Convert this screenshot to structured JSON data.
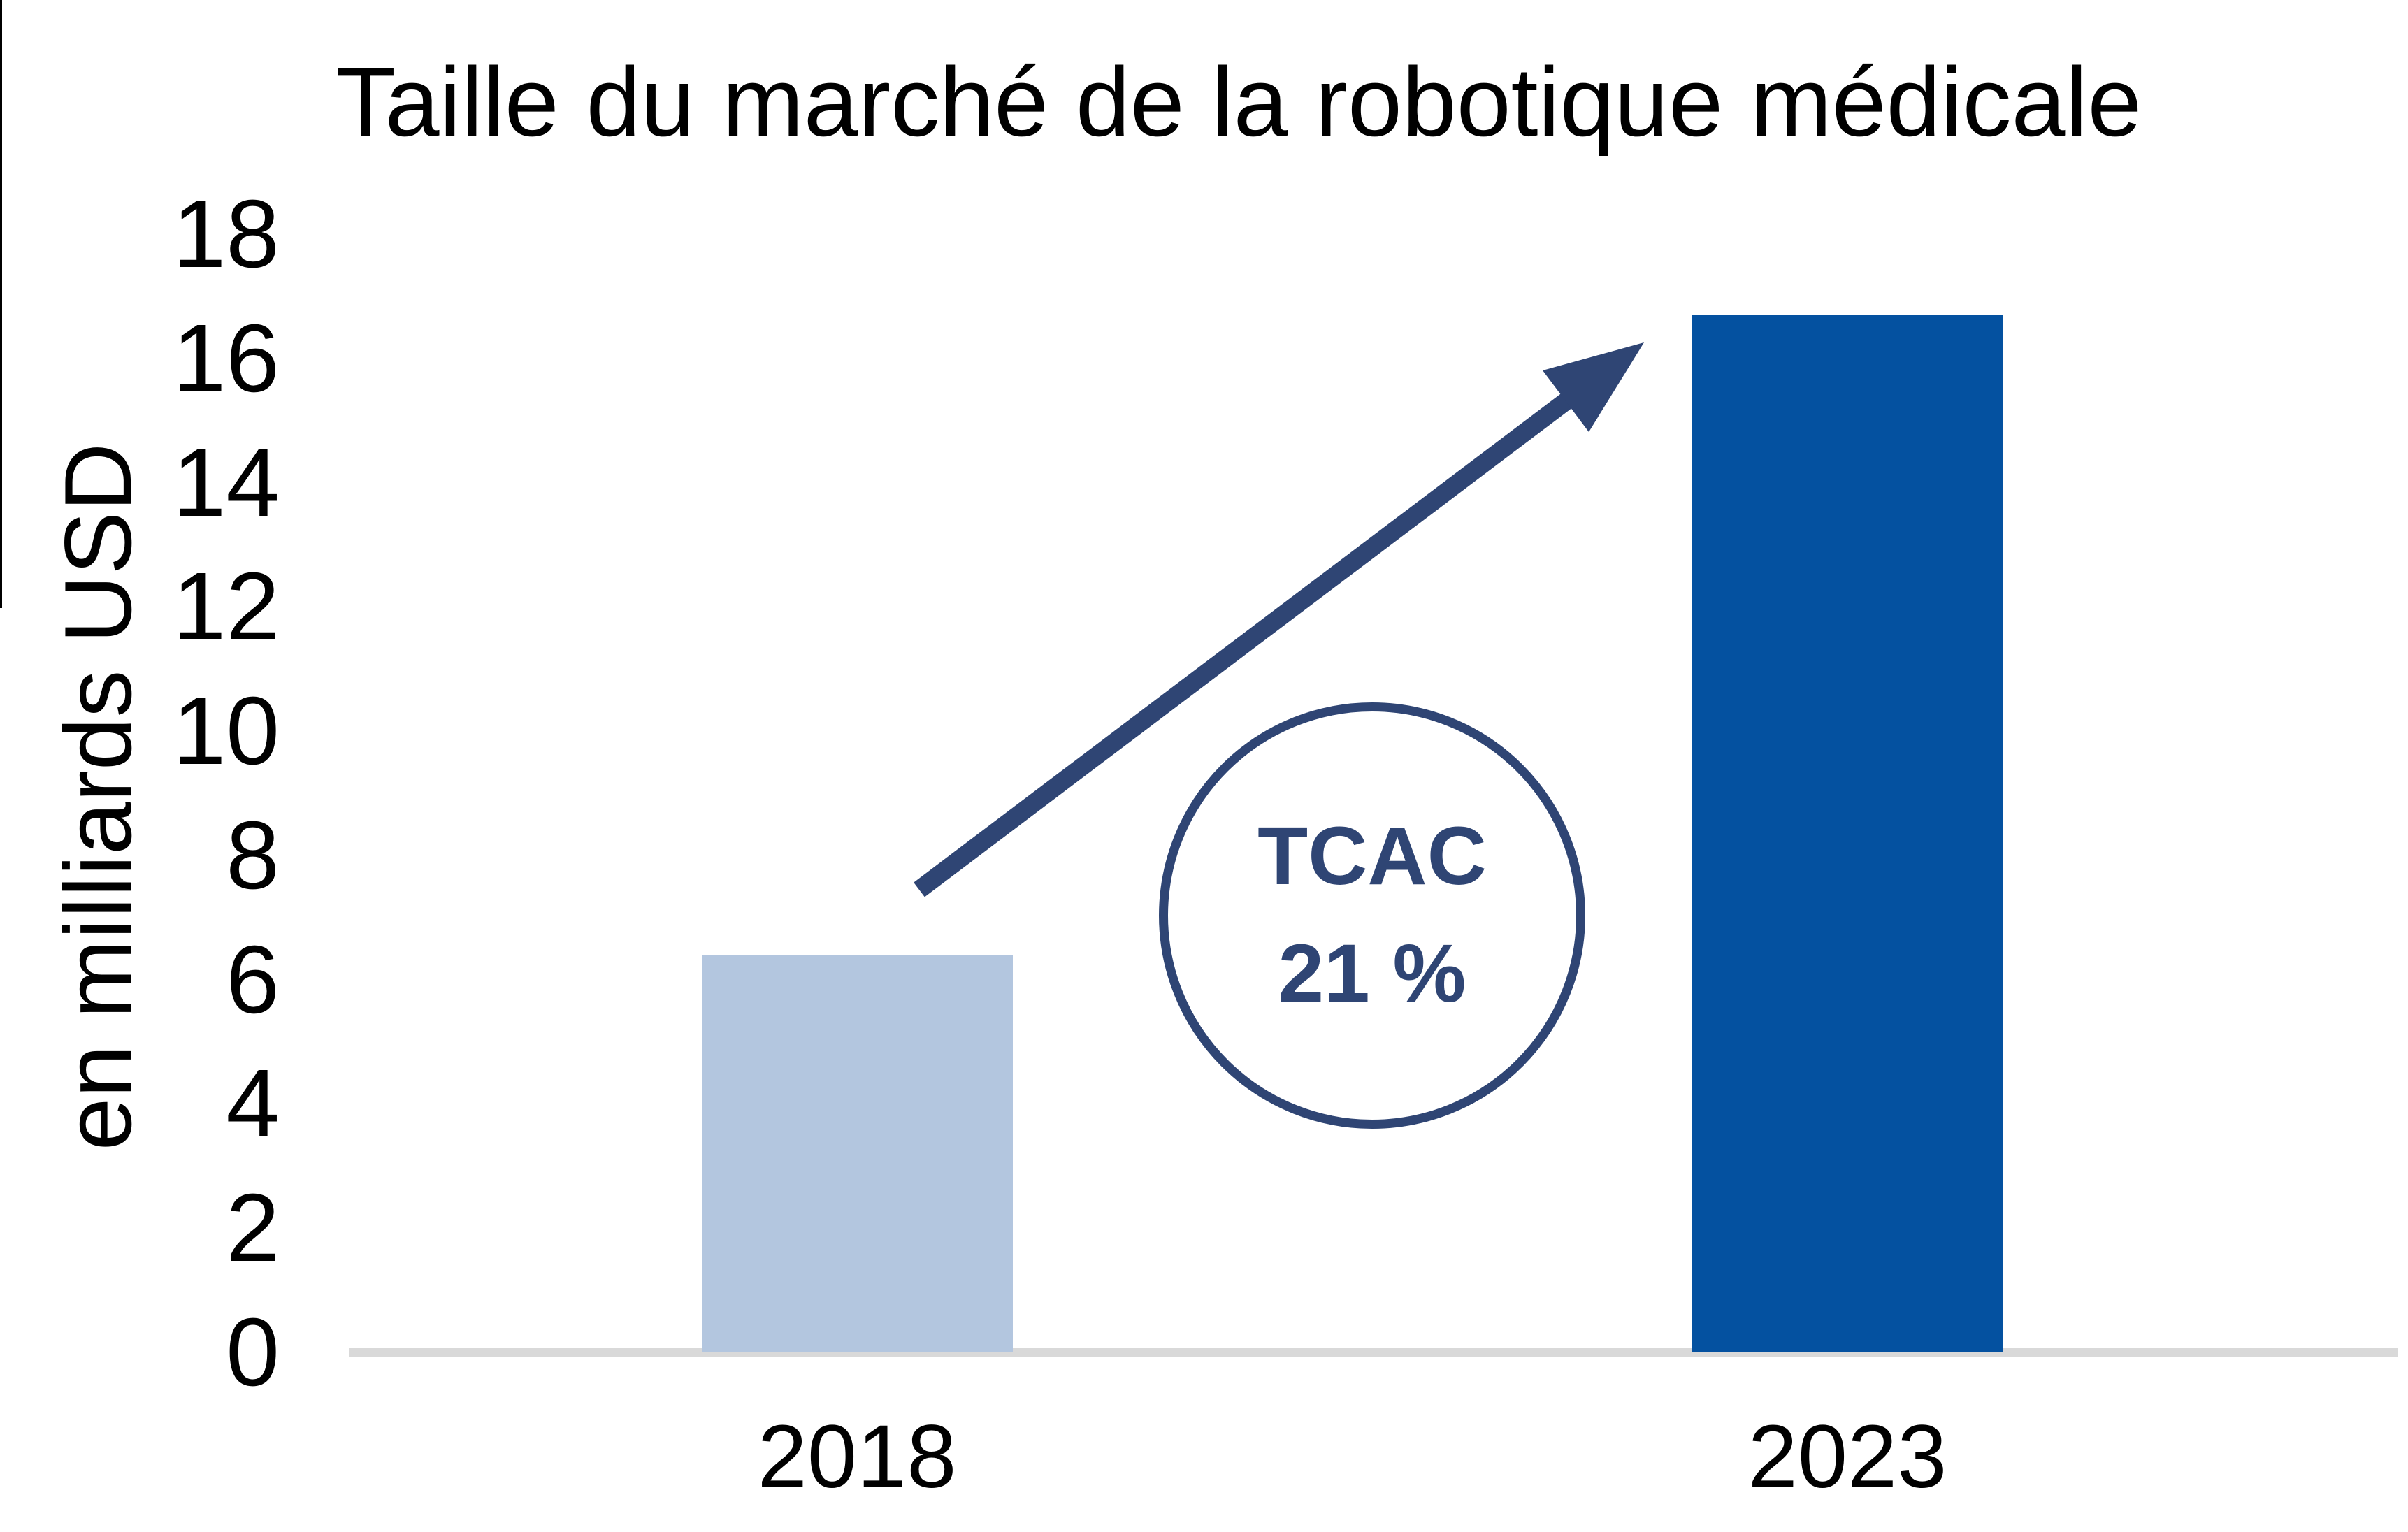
{
  "title": "Taille du marché de la robotique médicale",
  "colors": {
    "bar_2018": "#B3C6DF",
    "bar_2023": "#0451A0",
    "accent_navy": "#2F4574",
    "axis_line": "#D9D9D9",
    "text": "#000000",
    "background": "#FFFFFF"
  },
  "y_axis": {
    "label": "en milliards USD",
    "ticks": [
      18,
      16,
      14,
      12,
      10,
      8,
      6,
      4,
      2,
      0
    ]
  },
  "x_axis": {
    "categories": [
      "2018",
      "2023"
    ]
  },
  "annotation": {
    "label": "TCAC",
    "value": "21 %"
  },
  "chart_data": {
    "type": "bar",
    "title": "Taille du marché de la robotique médicale",
    "categories": [
      "2018",
      "2023"
    ],
    "values": [
      6.4,
      16.7
    ],
    "unit": "milliards USD",
    "xlabel": "",
    "ylabel": "en milliards USD",
    "ylim": [
      0,
      18
    ],
    "ytick_step": 2,
    "grid": false,
    "legend": false,
    "bar_colors": [
      "#B3C6DF",
      "#0451A0"
    ],
    "annotations": [
      {
        "type": "arrow",
        "meaning": "growth trend from 2018 bar to 2023 bar",
        "color": "#2F4574"
      },
      {
        "type": "circle-label",
        "lines": [
          "TCAC",
          "21 %"
        ],
        "meaning": "compound annual growth rate 21%",
        "color": "#2F4574"
      }
    ]
  }
}
